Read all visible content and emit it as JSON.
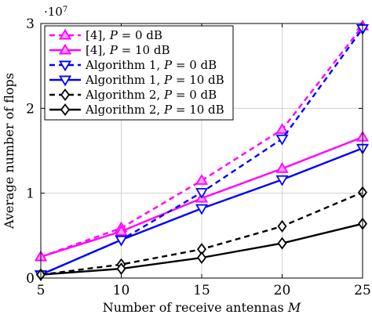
{
  "chart_data": {
    "type": "line",
    "xlabel": "Number of receive antennas M",
    "ylabel": "Average number of flops",
    "y_multiplier": "·10",
    "y_multiplier_exp": "7",
    "xlim": [
      5,
      25
    ],
    "ylim": [
      0,
      3
    ],
    "xticks": [
      5,
      10,
      15,
      20,
      25
    ],
    "yticks": [
      0,
      1,
      2,
      3
    ],
    "grid": true,
    "legend_position": "top-left",
    "x": [
      5,
      10,
      15,
      20,
      25
    ],
    "series": [
      {
        "name": "[4], P = 0 dB",
        "legend": {
          "prefix": "[4], ",
          "ital": "P",
          "suffix": " = 0 dB"
        },
        "values": [
          0.25,
          0.59,
          1.15,
          1.75,
          2.97
        ],
        "color": "#ff00ff",
        "dash": true,
        "marker": "triangle-up"
      },
      {
        "name": "[4], P = 10 dB",
        "legend": {
          "prefix": "[4], ",
          "ital": "P",
          "suffix": " = 10 dB"
        },
        "values": [
          0.25,
          0.55,
          0.94,
          1.29,
          1.66
        ],
        "color": "#ff00ff",
        "dash": false,
        "marker": "triangle-up"
      },
      {
        "name": "Algorithm 1, P = 0 dB",
        "legend": {
          "prefix": "Algorithm 1, ",
          "ital": "P",
          "suffix": " = 0 dB"
        },
        "values": [
          0.04,
          0.45,
          1.01,
          1.64,
          2.94
        ],
        "color": "#0000ff",
        "dash": true,
        "marker": "triangle-down"
      },
      {
        "name": "Algorithm 1, P = 10 dB",
        "legend": {
          "prefix": "Algorithm 1, ",
          "ital": "P",
          "suffix": " = 10 dB"
        },
        "values": [
          0.04,
          0.45,
          0.82,
          1.16,
          1.53
        ],
        "color": "#0000ff",
        "dash": false,
        "marker": "triangle-down"
      },
      {
        "name": "Algorithm 2, P = 0 dB",
        "legend": {
          "prefix": "Algorithm 2, ",
          "ital": "P",
          "suffix": " = 0 dB"
        },
        "values": [
          0.04,
          0.16,
          0.34,
          0.61,
          1.01
        ],
        "color": "#000000",
        "dash": true,
        "marker": "diamond"
      },
      {
        "name": "Algorithm 2, P = 10 dB",
        "legend": {
          "prefix": "Algorithm 2, ",
          "ital": "P",
          "suffix": " = 10 dB"
        },
        "values": [
          0.04,
          0.11,
          0.24,
          0.41,
          0.64
        ],
        "color": "#000000",
        "dash": false,
        "marker": "diamond"
      }
    ]
  }
}
